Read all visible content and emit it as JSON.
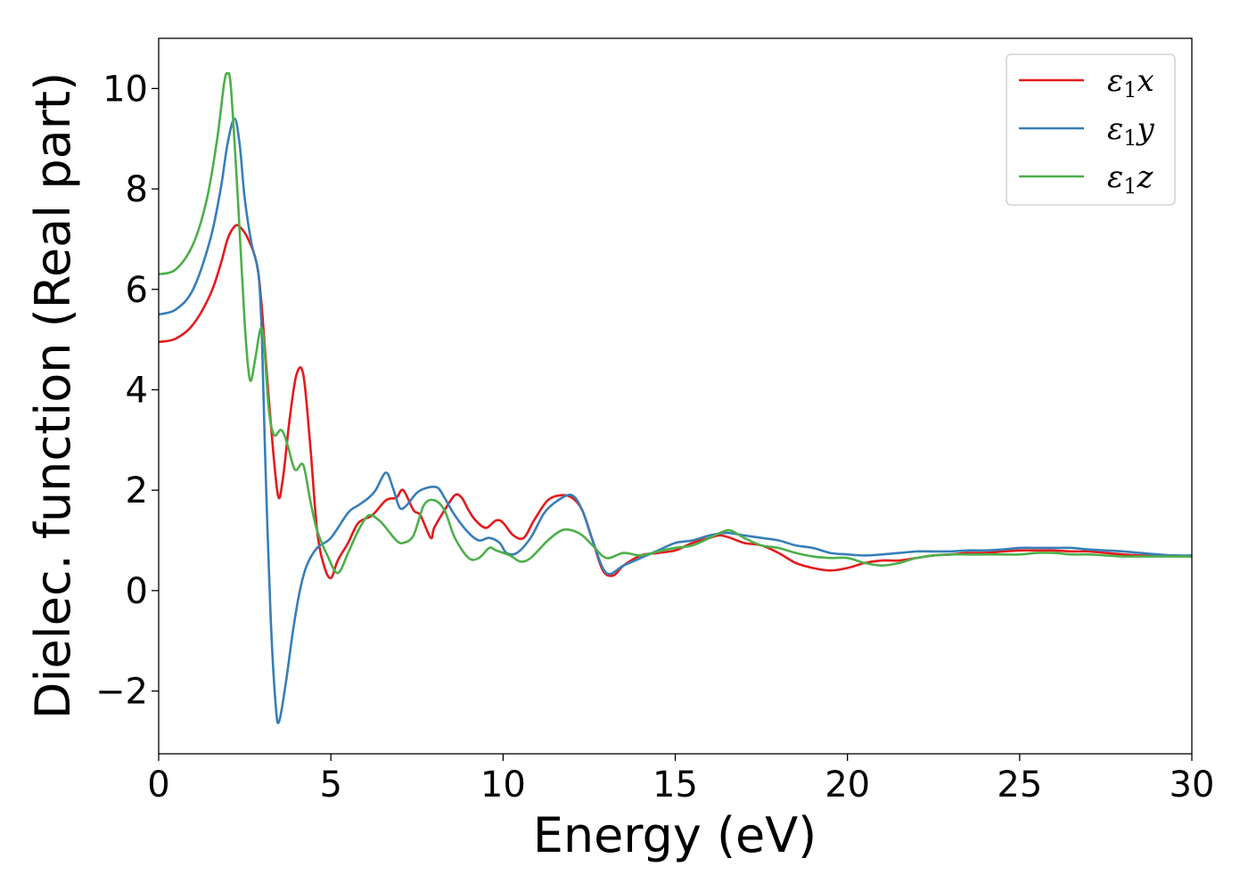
{
  "chart_data": {
    "type": "line",
    "title": "",
    "xlabel": "Energy (eV)",
    "ylabel": "Dielec. function (Real part)",
    "xlim": [
      0,
      30
    ],
    "ylim": [
      -3.25,
      11
    ],
    "xticks": [
      0,
      5,
      10,
      15,
      20,
      25,
      30
    ],
    "xtick_labels": [
      "0",
      "5",
      "10",
      "15",
      "20",
      "25",
      "30"
    ],
    "yticks": [
      -2,
      0,
      2,
      4,
      6,
      8,
      10
    ],
    "ytick_labels": [
      "−2",
      "0",
      "2",
      "4",
      "6",
      "8",
      "10"
    ],
    "grid": false,
    "legend_position": "top-right",
    "series": [
      {
        "name": "ε₁x",
        "legend_sub": "1",
        "legend_base": "ε",
        "legend_suffix": "x",
        "color": "#e41a1c",
        "x": [
          0,
          0.5,
          1.0,
          1.5,
          1.8,
          2.0,
          2.2,
          2.35,
          2.6,
          2.85,
          3.0,
          3.2,
          3.45,
          3.6,
          3.8,
          4.0,
          4.2,
          4.4,
          4.6,
          4.8,
          5.0,
          5.2,
          5.5,
          5.8,
          6.2,
          6.6,
          6.9,
          7.1,
          7.4,
          7.6,
          7.9,
          8.0,
          8.3,
          8.6,
          8.8,
          9.0,
          9.2,
          9.5,
          9.8,
          10.0,
          10.3,
          10.6,
          10.9,
          11.3,
          11.7,
          12.0,
          12.3,
          12.6,
          12.9,
          13.2,
          13.5,
          14.0,
          14.5,
          15.0,
          15.5,
          16.0,
          16.3,
          16.6,
          17.0,
          17.5,
          18.0,
          18.5,
          19.0,
          19.5,
          20.0,
          20.5,
          21.0,
          21.5,
          22.0,
          22.5,
          23.0,
          23.5,
          24.0,
          24.5,
          25.0,
          25.5,
          26.0,
          26.5,
          27.0,
          27.5,
          28.0,
          28.5,
          29.0,
          29.5,
          30.0
        ],
        "y": [
          4.95,
          5.02,
          5.3,
          5.9,
          6.5,
          7.0,
          7.25,
          7.25,
          7.0,
          6.5,
          5.6,
          3.8,
          1.95,
          2.2,
          3.4,
          4.3,
          4.3,
          2.9,
          1.2,
          0.5,
          0.25,
          0.6,
          0.95,
          1.35,
          1.5,
          1.8,
          1.85,
          2.0,
          1.6,
          1.5,
          1.05,
          1.25,
          1.6,
          1.9,
          1.85,
          1.6,
          1.4,
          1.25,
          1.4,
          1.35,
          1.1,
          1.05,
          1.4,
          1.8,
          1.9,
          1.85,
          1.6,
          1.0,
          0.4,
          0.3,
          0.5,
          0.7,
          0.75,
          0.8,
          0.95,
          1.05,
          1.1,
          1.05,
          0.95,
          0.9,
          0.75,
          0.55,
          0.45,
          0.4,
          0.45,
          0.55,
          0.6,
          0.6,
          0.65,
          0.7,
          0.72,
          0.75,
          0.75,
          0.78,
          0.8,
          0.8,
          0.8,
          0.78,
          0.78,
          0.75,
          0.72,
          0.7,
          0.7,
          0.7,
          0.68
        ]
      },
      {
        "name": "ε₁y",
        "legend_sub": "1",
        "legend_base": "ε",
        "legend_suffix": "y",
        "color": "#377eb8",
        "x": [
          0,
          0.5,
          1.0,
          1.5,
          1.8,
          2.0,
          2.2,
          2.35,
          2.5,
          2.7,
          2.9,
          3.0,
          3.1,
          3.25,
          3.4,
          3.5,
          3.7,
          3.9,
          4.1,
          4.3,
          4.6,
          5.0,
          5.5,
          5.8,
          6.1,
          6.3,
          6.6,
          6.8,
          7.0,
          7.2,
          7.5,
          7.8,
          8.1,
          8.3,
          8.6,
          9.0,
          9.3,
          9.6,
          9.9,
          10.1,
          10.4,
          10.8,
          11.2,
          11.6,
          12.0,
          12.3,
          12.6,
          13.0,
          13.5,
          14.0,
          14.5,
          15.0,
          15.5,
          16.0,
          16.5,
          17.0,
          17.5,
          18.0,
          18.5,
          19.0,
          19.5,
          20.0,
          20.5,
          21.0,
          21.5,
          22.0,
          22.5,
          23.0,
          23.5,
          24.0,
          24.5,
          25.0,
          25.5,
          26.0,
          26.5,
          27.0,
          27.5,
          28.0,
          28.5,
          29.0,
          29.5,
          30.0
        ],
        "y": [
          5.5,
          5.6,
          6.0,
          7.0,
          8.0,
          8.9,
          9.4,
          8.9,
          7.8,
          6.9,
          6.3,
          5.0,
          2.5,
          -0.5,
          -2.3,
          -2.6,
          -1.8,
          -0.8,
          0.0,
          0.5,
          0.85,
          1.05,
          1.55,
          1.7,
          1.85,
          2.0,
          2.35,
          2.05,
          1.65,
          1.7,
          1.95,
          2.05,
          2.05,
          1.85,
          1.5,
          1.15,
          1.0,
          1.05,
          0.95,
          0.75,
          0.75,
          1.05,
          1.55,
          1.8,
          1.9,
          1.6,
          1.0,
          0.35,
          0.5,
          0.65,
          0.8,
          0.95,
          1.0,
          1.1,
          1.15,
          1.1,
          1.05,
          1.0,
          0.9,
          0.85,
          0.75,
          0.72,
          0.7,
          0.72,
          0.75,
          0.78,
          0.78,
          0.78,
          0.8,
          0.8,
          0.82,
          0.85,
          0.85,
          0.85,
          0.85,
          0.82,
          0.8,
          0.78,
          0.75,
          0.72,
          0.7,
          0.7
        ]
      },
      {
        "name": "ε₁z",
        "legend_sub": "1",
        "legend_base": "ε",
        "legend_suffix": "z",
        "color": "#4daf4a",
        "x": [
          0,
          0.5,
          1.0,
          1.4,
          1.7,
          1.9,
          2.0,
          2.1,
          2.3,
          2.5,
          2.65,
          2.8,
          2.95,
          3.05,
          3.2,
          3.35,
          3.55,
          3.7,
          3.9,
          4.0,
          4.2,
          4.4,
          4.6,
          4.9,
          5.2,
          5.5,
          5.8,
          6.1,
          6.4,
          6.6,
          6.9,
          7.1,
          7.4,
          7.7,
          8.0,
          8.3,
          8.6,
          9.0,
          9.3,
          9.6,
          9.8,
          10.2,
          10.5,
          10.8,
          11.3,
          11.7,
          12.0,
          12.3,
          12.6,
          13.0,
          13.5,
          14.0,
          14.5,
          15.0,
          15.5,
          16.0,
          16.3,
          16.6,
          17.0,
          17.5,
          18.0,
          18.5,
          19.0,
          19.5,
          20.0,
          20.5,
          21.0,
          21.5,
          22.0,
          22.5,
          23.0,
          23.5,
          24.0,
          24.5,
          25.0,
          25.5,
          26.0,
          26.5,
          27.0,
          27.5,
          28.0,
          28.5,
          29.0,
          29.5,
          30.0
        ],
        "y": [
          6.3,
          6.4,
          6.9,
          7.8,
          9.0,
          10.1,
          10.3,
          10.0,
          7.8,
          5.3,
          4.2,
          4.6,
          5.2,
          5.0,
          3.6,
          3.1,
          3.2,
          3.0,
          2.5,
          2.4,
          2.5,
          1.8,
          1.2,
          0.7,
          0.35,
          0.75,
          1.2,
          1.5,
          1.4,
          1.25,
          1.0,
          0.95,
          1.1,
          1.7,
          1.8,
          1.6,
          1.05,
          0.65,
          0.65,
          0.85,
          0.8,
          0.7,
          0.58,
          0.65,
          1.0,
          1.2,
          1.2,
          1.1,
          0.9,
          0.65,
          0.75,
          0.7,
          0.78,
          0.85,
          0.9,
          1.05,
          1.15,
          1.2,
          1.05,
          0.9,
          0.85,
          0.75,
          0.68,
          0.65,
          0.65,
          0.55,
          0.5,
          0.55,
          0.65,
          0.7,
          0.72,
          0.72,
          0.72,
          0.72,
          0.72,
          0.75,
          0.75,
          0.72,
          0.72,
          0.7,
          0.68,
          0.68,
          0.68,
          0.68,
          0.68
        ]
      }
    ]
  }
}
